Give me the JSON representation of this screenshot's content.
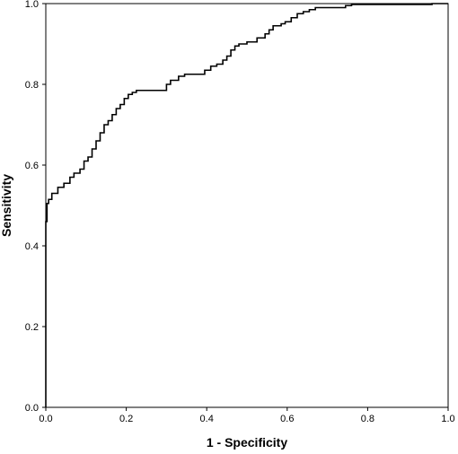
{
  "chart_data": {
    "type": "line",
    "title": "",
    "xlabel": "1 - Specificity",
    "ylabel": "Sensitivity",
    "xlim": [
      0,
      1
    ],
    "ylim": [
      0,
      1
    ],
    "grid": false,
    "x_ticks": [
      "0.0",
      "0.2",
      "0.4",
      "0.6",
      "0.8",
      "1.0"
    ],
    "y_ticks": [
      "0.0",
      "0.2",
      "0.4",
      "0.6",
      "0.8",
      "1.0"
    ],
    "series": [
      {
        "color": "#000000",
        "x": [
          0.0,
          0.0,
          0.003,
          0.003,
          0.007,
          0.007,
          0.015,
          0.015,
          0.03,
          0.03,
          0.045,
          0.045,
          0.06,
          0.06,
          0.07,
          0.07,
          0.085,
          0.085,
          0.095,
          0.095,
          0.105,
          0.105,
          0.115,
          0.115,
          0.125,
          0.125,
          0.135,
          0.135,
          0.145,
          0.145,
          0.155,
          0.155,
          0.165,
          0.165,
          0.175,
          0.175,
          0.185,
          0.185,
          0.195,
          0.195,
          0.205,
          0.205,
          0.215,
          0.215,
          0.225,
          0.225,
          0.235,
          0.235,
          0.3,
          0.3,
          0.31,
          0.31,
          0.33,
          0.33,
          0.345,
          0.345,
          0.395,
          0.395,
          0.41,
          0.41,
          0.425,
          0.425,
          0.44,
          0.44,
          0.45,
          0.45,
          0.46,
          0.46,
          0.47,
          0.47,
          0.48,
          0.48,
          0.5,
          0.5,
          0.525,
          0.525,
          0.545,
          0.545,
          0.555,
          0.555,
          0.565,
          0.565,
          0.585,
          0.585,
          0.595,
          0.595,
          0.61,
          0.61,
          0.625,
          0.625,
          0.64,
          0.64,
          0.655,
          0.655,
          0.67,
          0.67,
          0.745,
          0.745,
          0.76,
          0.76,
          0.96,
          0.96,
          1.0
        ],
        "y": [
          0.0,
          0.46,
          0.46,
          0.505,
          0.505,
          0.515,
          0.515,
          0.53,
          0.53,
          0.545,
          0.545,
          0.555,
          0.555,
          0.57,
          0.57,
          0.58,
          0.58,
          0.59,
          0.59,
          0.61,
          0.61,
          0.62,
          0.62,
          0.64,
          0.64,
          0.66,
          0.66,
          0.68,
          0.68,
          0.7,
          0.7,
          0.71,
          0.71,
          0.725,
          0.725,
          0.74,
          0.74,
          0.75,
          0.75,
          0.765,
          0.765,
          0.775,
          0.775,
          0.78,
          0.78,
          0.785,
          0.785,
          0.785,
          0.785,
          0.8,
          0.8,
          0.81,
          0.81,
          0.82,
          0.82,
          0.825,
          0.825,
          0.835,
          0.835,
          0.845,
          0.845,
          0.85,
          0.85,
          0.86,
          0.86,
          0.87,
          0.87,
          0.885,
          0.885,
          0.895,
          0.895,
          0.9,
          0.9,
          0.905,
          0.905,
          0.915,
          0.915,
          0.925,
          0.925,
          0.935,
          0.935,
          0.945,
          0.945,
          0.95,
          0.95,
          0.955,
          0.955,
          0.965,
          0.965,
          0.975,
          0.975,
          0.98,
          0.98,
          0.985,
          0.985,
          0.99,
          0.99,
          0.995,
          0.995,
          0.998,
          0.998,
          1.0,
          1.0
        ]
      }
    ]
  }
}
